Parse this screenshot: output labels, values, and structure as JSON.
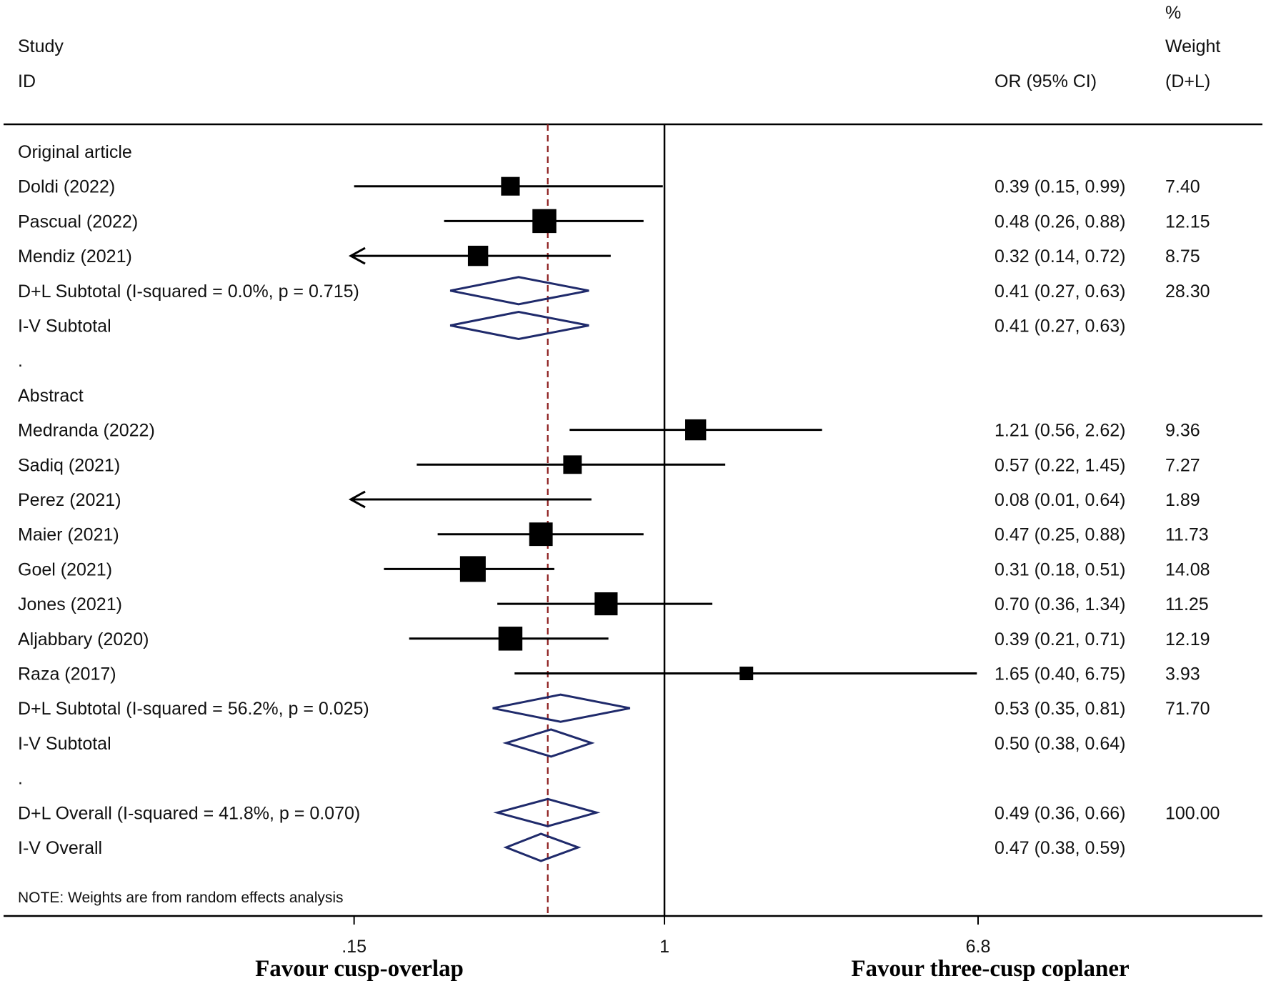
{
  "chart_data": {
    "type": "forest",
    "header": {
      "study_line1": "Study",
      "study_line2": "ID",
      "or_col": "OR (95% CI)",
      "weight_line1": "%",
      "weight_line2": "Weight",
      "weight_line3": "(D+L)"
    },
    "x_scale": "log",
    "x_ticks": [
      {
        "value": 0.15,
        "label": ".15"
      },
      {
        "value": 1,
        "label": "1"
      },
      {
        "value": 6.8,
        "label": "6.8"
      }
    ],
    "x_range": [
      0.147,
      6.8
    ],
    "reference_line": 1,
    "overall_line": 0.49,
    "xlabel_left": "Favour cusp-overlap",
    "xlabel_right": "Favour three-cusp coplaner",
    "note": "NOTE: Weights are from random effects analysis",
    "rows": [
      {
        "kind": "group",
        "label": "Original article"
      },
      {
        "kind": "study",
        "label": "Doldi (2022)",
        "or": 0.39,
        "lo": 0.15,
        "hi": 0.99,
        "ci_text": "0.39 (0.15, 0.99)",
        "weight": "7.40"
      },
      {
        "kind": "study",
        "label": "Pascual (2022)",
        "or": 0.48,
        "lo": 0.26,
        "hi": 0.88,
        "ci_text": "0.48 (0.26, 0.88)",
        "weight": "12.15"
      },
      {
        "kind": "study",
        "label": "Mendiz (2021)",
        "or": 0.32,
        "lo": 0.14,
        "hi": 0.72,
        "ci_text": "0.32 (0.14, 0.72)",
        "weight": "8.75",
        "arrow_left": true
      },
      {
        "kind": "pooled",
        "label": "D+L Subtotal  (I-squared = 0.0%, p = 0.715)",
        "or": 0.41,
        "lo": 0.27,
        "hi": 0.63,
        "ci_text": "0.41 (0.27, 0.63)",
        "weight": "28.30"
      },
      {
        "kind": "pooled",
        "label": "I-V Subtotal",
        "or": 0.41,
        "lo": 0.27,
        "hi": 0.63,
        "ci_text": "0.41 (0.27, 0.63)",
        "weight": ""
      },
      {
        "kind": "spacer",
        "label": "."
      },
      {
        "kind": "group",
        "label": "Abstract"
      },
      {
        "kind": "study",
        "label": "Medranda (2022)",
        "or": 1.21,
        "lo": 0.56,
        "hi": 2.62,
        "ci_text": "1.21 (0.56, 2.62)",
        "weight": "9.36"
      },
      {
        "kind": "study",
        "label": "Sadiq (2021)",
        "or": 0.57,
        "lo": 0.22,
        "hi": 1.45,
        "ci_text": "0.57 (0.22, 1.45)",
        "weight": "7.27"
      },
      {
        "kind": "study",
        "label": "Perez (2021)",
        "or": 0.08,
        "lo": 0.01,
        "hi": 0.64,
        "ci_text": "0.08 (0.01, 0.64)",
        "weight": "1.89",
        "arrow_left": true,
        "hide_box": true
      },
      {
        "kind": "study",
        "label": "Maier (2021)",
        "or": 0.47,
        "lo": 0.25,
        "hi": 0.88,
        "ci_text": "0.47 (0.25, 0.88)",
        "weight": "11.73"
      },
      {
        "kind": "study",
        "label": "Goel (2021)",
        "or": 0.31,
        "lo": 0.18,
        "hi": 0.51,
        "ci_text": "0.31 (0.18, 0.51)",
        "weight": "14.08"
      },
      {
        "kind": "study",
        "label": "Jones (2021)",
        "or": 0.7,
        "lo": 0.36,
        "hi": 1.34,
        "ci_text": "0.70 (0.36, 1.34)",
        "weight": "11.25"
      },
      {
        "kind": "study",
        "label": "Aljabbary (2020)",
        "or": 0.39,
        "lo": 0.21,
        "hi": 0.71,
        "ci_text": "0.39 (0.21, 0.71)",
        "weight": "12.19"
      },
      {
        "kind": "study",
        "label": "Raza (2017)",
        "or": 1.65,
        "lo": 0.4,
        "hi": 6.75,
        "ci_text": "1.65 (0.40, 6.75)",
        "weight": "3.93"
      },
      {
        "kind": "pooled",
        "label": "D+L Subtotal  (I-squared = 56.2%, p = 0.025)",
        "or": 0.53,
        "lo": 0.35,
        "hi": 0.81,
        "ci_text": "0.53 (0.35, 0.81)",
        "weight": "71.70"
      },
      {
        "kind": "pooled",
        "label": "I-V Subtotal",
        "or": 0.5,
        "lo": 0.38,
        "hi": 0.64,
        "ci_text": "0.50 (0.38, 0.64)",
        "weight": ""
      },
      {
        "kind": "spacer",
        "label": "."
      },
      {
        "kind": "pooled",
        "label": "D+L Overall  (I-squared = 41.8%, p = 0.070)",
        "or": 0.49,
        "lo": 0.36,
        "hi": 0.66,
        "ci_text": "0.49 (0.36, 0.66)",
        "weight": "100.00"
      },
      {
        "kind": "pooled",
        "label": "I-V Overall",
        "or": 0.47,
        "lo": 0.38,
        "hi": 0.59,
        "ci_text": "0.47 (0.38, 0.59)",
        "weight": ""
      }
    ],
    "colors": {
      "marker": "#000000",
      "ci_line": "#000000",
      "diamond": "#1f2a6b",
      "overall_line": "#8b1a1a"
    }
  }
}
